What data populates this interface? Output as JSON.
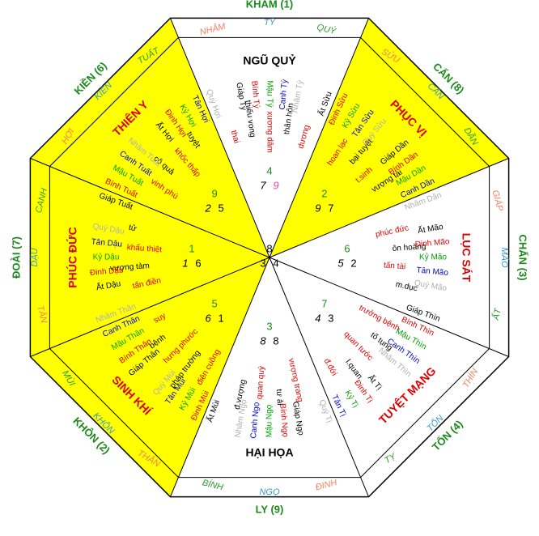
{
  "palaces": {
    "kham": {
      "title": "KHẢM (1)",
      "mountains": [
        "NHÂM",
        "TÝ",
        "QUÝ"
      ],
      "star": "NGŨ QUỶ",
      "notes": [
        "thai",
        "thiếu vong",
        "xương dâm",
        "thân hôn",
        "dương"
      ],
      "chart": {
        "top": "4",
        "left": "7",
        "right": "9"
      }
    },
    "can": {
      "title": "CẤN (8)",
      "mountains": [
        "SỬU",
        "CẤN",
        "DẦN"
      ],
      "star": "PHỤC VỊ",
      "notes": [
        "hoan lạc",
        "bại tuyệt",
        "t.sinh",
        "vượng tài"
      ],
      "chart": {
        "top": "2",
        "left": "9",
        "right": "7"
      }
    },
    "chan": {
      "title": "CHẤN (3)",
      "mountains": [
        "GIÁP",
        "MÃO",
        "ẤT"
      ],
      "star": "LỤC SÁT",
      "notes": [
        "phúc đức",
        "ôn hoàng",
        "tấn tài",
        "m.dục"
      ],
      "chart": {
        "top": "6",
        "left": "5",
        "right": "2"
      }
    },
    "ton": {
      "title": "TỐN (4)",
      "mountains": [
        "THÌN",
        "TỐN",
        "TỴ"
      ],
      "star": "TUYỆT MẠNG",
      "notes": [
        "trưởng bệnh",
        "tố tụng",
        "quan tước",
        "l.quan",
        "đ.đới"
      ],
      "chart": {
        "top": "7",
        "left": "4",
        "right": "3"
      }
    },
    "ly": {
      "title": "LY (9)",
      "mountains": [
        "ĐINH",
        "NGỌ",
        "BÍNH"
      ],
      "star": "HẠI HỌA",
      "notes": [
        "vượng trang",
        "tư ải",
        "quan quý",
        "đ.vượng"
      ],
      "chart": {
        "top": "3",
        "left": "8",
        "right": "8"
      }
    },
    "khon": {
      "title": "KHÔN (2)",
      "mountains": [
        "THÂN",
        "KHÔN",
        "MÙI"
      ],
      "star": "SINH KHÍ",
      "notes": [
        "điên cuồng",
        "pháp trường",
        "hưng phước",
        "bệnh",
        "suy"
      ],
      "chart": {
        "top": "5",
        "left": "6",
        "right": "1"
      }
    },
    "doai": {
      "title": "ĐOÀI (7)",
      "mountains": [
        "TÂN",
        "DẬU",
        "CANH"
      ],
      "star": "PHÚC ĐỨC",
      "notes": [
        "tấn điền",
        "vượng tàm",
        "khẩu thiệt",
        "tử"
      ],
      "chart": {
        "top": "1",
        "left": "1",
        "right": "6"
      }
    },
    "kien": {
      "title": "KIỀN (6)",
      "mountains": [
        "HỢI",
        "KIỀN",
        "TUẤT"
      ],
      "star": "THIÊN Y",
      "notes": [
        "vinh phú",
        "cô quả",
        "khốc thấp",
        "tuyệt"
      ],
      "chart": {
        "top": "9",
        "left": "2",
        "right": "5"
      }
    }
  },
  "center_chart": {
    "top": "8",
    "left": "3",
    "right": "4"
  },
  "stems": {
    "ty": [
      "Giáp Tý",
      "Bính Tý",
      "Mậu Tý",
      "Canh Tý",
      "Nhâm Tý"
    ],
    "suu": [
      "Ất Sửu",
      "Đinh Sửu",
      "Kỷ Sửu",
      "Tân Sửu",
      "Quý Sửu"
    ],
    "dan": [
      "Giáp Dần",
      "Bính Dần",
      "Mậu Dần",
      "Canh Dần",
      "Nhâm Dần"
    ],
    "mao": [
      "Ất Mão",
      "Đinh Mão",
      "Kỷ Mão",
      "Tân Mão",
      "Quý Mão"
    ],
    "thin": [
      "Giáp Thìn",
      "Bính Thìn",
      "Mậu Thìn",
      "Canh Thìn",
      "Nhâm Thìn"
    ],
    "ti": [
      "Ất Tị",
      "Đinh Tị",
      "Kỷ Tị",
      "Tân Tị",
      "Quý Tị"
    ],
    "ngo": [
      "Giáp Ngọ",
      "Bính Ngọ",
      "Mậu Ngọ",
      "Canh Ngọ",
      "Nhâm Ngọ"
    ],
    "mui": [
      "Ất Mùi",
      "Đinh Mùi",
      "Kỷ Mùi",
      "Tân Mùi",
      "Quý Mùi"
    ],
    "than": [
      "Giáp Thân",
      "Bính Thân",
      "Mậu Thân",
      "Canh Thân",
      "Nhâm Thân"
    ],
    "dau": [
      "Ất Dậu",
      "Đinh Dậu",
      "Kỷ Dậu",
      "Tân Dậu",
      "Quý Dậu"
    ],
    "tuat": [
      "Giáp Tuất",
      "Bính Tuất",
      "Mậu Tuất",
      "Canh Tuất",
      "Nhâm Tuất"
    ],
    "hoi": [
      "Ất Hợi",
      "Đinh Hợi",
      "Kỷ Hợi",
      "Tân Hợi",
      "Quý Hợi"
    ]
  },
  "colors": {
    "yellow": "#ffff00",
    "white": "#ffffff",
    "title": "#1a8a1a",
    "mountain_side": "#f08060",
    "mountain_mid": "#3399cc",
    "mountain_last": "#2a9a2a",
    "star": "#e00000",
    "note_red": "#e00000",
    "note_green": "#1a8a1a",
    "pink": "#dd44aa"
  },
  "stem_colors": [
    "#000000",
    "#e00000",
    "#00a000",
    "#0000cc",
    "#b0b0b0",
    "#c8a000"
  ]
}
